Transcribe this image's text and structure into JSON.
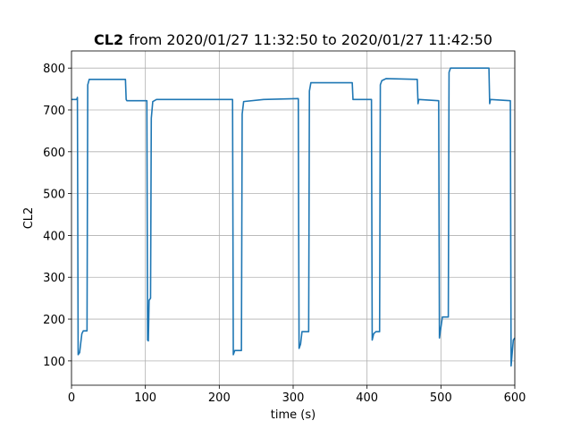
{
  "chart_data": {
    "type": "line",
    "title_bold": "CL2",
    "title": "from 2020/01/27 11:32:50 to 2020/01/27 11:42:50",
    "xlabel": "time (s)",
    "ylabel": "CL2",
    "xlim": [
      0,
      600
    ],
    "ylim": [
      42,
      841
    ],
    "xticks": [
      0,
      100,
      200,
      300,
      400,
      500,
      600
    ],
    "yticks": [
      100,
      200,
      300,
      400,
      500,
      600,
      700,
      800
    ],
    "grid": true,
    "x": [
      0,
      7,
      8,
      9,
      11,
      14,
      16,
      21,
      22,
      24,
      73,
      74,
      75,
      102,
      103,
      104,
      105,
      107,
      108,
      110,
      115,
      218,
      219,
      221,
      230,
      231,
      233,
      260,
      307,
      308,
      310,
      312,
      321,
      322,
      324,
      380,
      381,
      406,
      407,
      409,
      412,
      417,
      418,
      420,
      426,
      468,
      469,
      470,
      497,
      498,
      500,
      502,
      510,
      511,
      513,
      565,
      566,
      567,
      594,
      595,
      597,
      598,
      600
    ],
    "series": [
      {
        "name": "CL2",
        "color": "#1f77b4",
        "values": [
          725,
          725,
          730,
          115,
          120,
          165,
          172,
          172,
          760,
          773,
          773,
          725,
          722,
          722,
          150,
          148,
          245,
          250,
          680,
          720,
          725,
          725,
          115,
          125,
          125,
          690,
          720,
          725,
          727,
          130,
          140,
          170,
          170,
          745,
          765,
          765,
          725,
          725,
          150,
          165,
          170,
          170,
          760,
          770,
          775,
          773,
          715,
          725,
          722,
          155,
          180,
          205,
          205,
          790,
          800,
          800,
          715,
          725,
          722,
          88,
          130,
          150,
          155
        ]
      }
    ]
  }
}
